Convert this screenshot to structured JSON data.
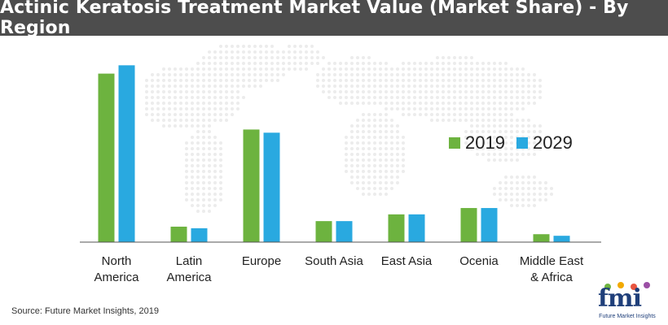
{
  "title": "Actinic Keratosis Treatment Market Value (Market Share) - By Region",
  "source": "Source: Future Market Insights, 2019",
  "logo": {
    "letters": "fmi",
    "tagline": "Future Market Insights"
  },
  "colors": {
    "title_bg": "#4d4d4d",
    "series_2019": "#6db33f",
    "series_2029": "#29a9e0",
    "axis": "#555555"
  },
  "chart_data": {
    "type": "bar",
    "categories": [
      "North\nAmerica",
      "Latin\nAmerica",
      "Europe",
      "South Asia",
      "East Asia",
      "Ocenia",
      "Middle East\n& Africa"
    ],
    "series": [
      {
        "name": "2019",
        "values": [
          42.5,
          3.9,
          28.4,
          5.3,
          7.0,
          8.6,
          2.0
        ]
      },
      {
        "name": "2029",
        "values": [
          44.6,
          3.5,
          27.6,
          5.3,
          7.0,
          8.6,
          1.6
        ]
      }
    ],
    "ylim": [
      0,
      50
    ],
    "grid": false,
    "legend": "right-center"
  }
}
